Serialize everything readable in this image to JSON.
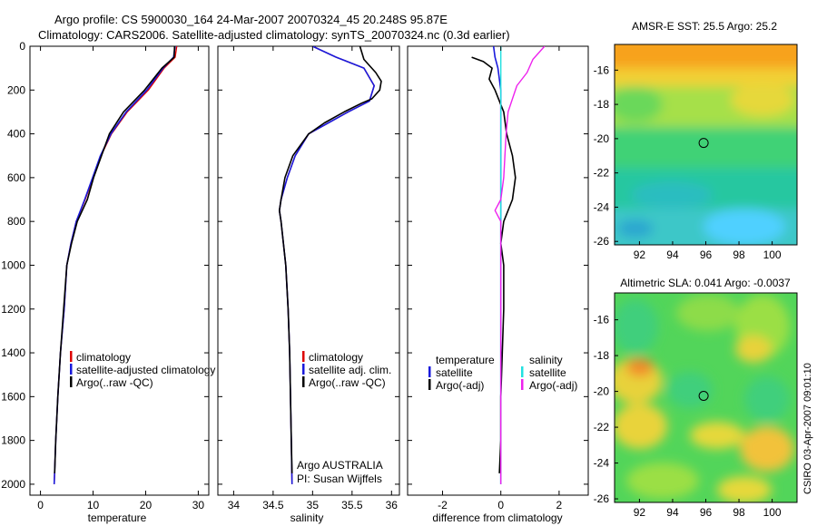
{
  "header": {
    "line1": "Argo profile: CS 5900030_164 24-Mar-2007 20070324_45 20.248S 95.87E",
    "line2": "Climatology: CARS2006. Satellite-adjusted climatology: synTS_20070324.nc (0.3d earlier)"
  },
  "side_stamp": "CSIRO 03-Apr-2007 09:01:10",
  "colors": {
    "red": "#dd0000",
    "blue": "#1a1adc",
    "black": "#000000",
    "cyan": "#22e0e0",
    "magenta": "#ee22ee"
  },
  "chart_data": [
    {
      "id": "temperature",
      "type": "line",
      "xlabel": "temperature",
      "xlim": [
        -2,
        32
      ],
      "ylim": [
        2050,
        0
      ],
      "xticks": [
        0,
        10,
        20,
        30
      ],
      "yticks": [
        0,
        200,
        400,
        600,
        800,
        1000,
        1200,
        1400,
        1600,
        1800,
        2000
      ],
      "legend": {
        "placement": "lower-center",
        "entries": [
          "climatology",
          "satellite-adjusted climatology",
          "Argo(..raw -QC)"
        ]
      },
      "series": [
        {
          "name": "climatology",
          "color": "red",
          "points": [
            [
              25.9,
              0
            ],
            [
              25.6,
              50
            ],
            [
              23.5,
              100
            ],
            [
              20.5,
              200
            ],
            [
              16.5,
              300
            ],
            [
              13.5,
              400
            ],
            [
              11.5,
              500
            ],
            [
              10.0,
              600
            ],
            [
              8.5,
              700
            ],
            [
              6.8,
              800
            ],
            [
              5.8,
              900
            ],
            [
              5.0,
              1000
            ],
            [
              4.5,
              1200
            ],
            [
              3.8,
              1400
            ],
            [
              3.3,
              1600
            ],
            [
              2.9,
              1800
            ],
            [
              2.6,
              2000
            ]
          ]
        },
        {
          "name": "satellite-adjusted climatology",
          "color": "blue",
          "points": [
            [
              25.6,
              0
            ],
            [
              25.3,
              50
            ],
            [
              23.3,
              100
            ],
            [
              20.2,
              200
            ],
            [
              16.3,
              300
            ],
            [
              13.4,
              400
            ],
            [
              11.4,
              500
            ],
            [
              9.9,
              600
            ],
            [
              8.4,
              700
            ],
            [
              6.8,
              800
            ],
            [
              5.8,
              900
            ],
            [
              5.0,
              1000
            ],
            [
              4.5,
              1200
            ],
            [
              3.8,
              1400
            ],
            [
              3.3,
              1600
            ],
            [
              2.9,
              1800
            ],
            [
              2.6,
              2000
            ]
          ]
        },
        {
          "name": "Argo(..raw -QC)",
          "color": "black",
          "points": [
            [
              25.5,
              0
            ],
            [
              25.4,
              50
            ],
            [
              23.1,
              100
            ],
            [
              19.8,
              200
            ],
            [
              15.8,
              300
            ],
            [
              13.1,
              400
            ],
            [
              11.6,
              500
            ],
            [
              10.1,
              600
            ],
            [
              8.9,
              700
            ],
            [
              7.0,
              800
            ],
            [
              5.9,
              900
            ],
            [
              5.0,
              1000
            ],
            [
              4.4,
              1200
            ],
            [
              3.8,
              1400
            ],
            [
              3.3,
              1600
            ],
            [
              2.9,
              1800
            ],
            [
              2.7,
              1950
            ]
          ]
        }
      ]
    },
    {
      "id": "salinity",
      "type": "line",
      "xlabel": "salinity",
      "xlim": [
        33.8,
        36.1
      ],
      "ylim": [
        2050,
        0
      ],
      "xticks": [
        34,
        34.5,
        35,
        35.5,
        36
      ],
      "legend": {
        "placement": "lower-center",
        "entries": [
          "climatology",
          "satellite adj. clim.",
          "Argo(..raw -QC)"
        ]
      },
      "annotation": [
        "Argo AUSTRALIA",
        "PI: Susan Wijffels"
      ],
      "series": [
        {
          "name": "climatology",
          "color": "red",
          "points": [
            [
              35.0,
              0
            ],
            [
              35.3,
              50
            ],
            [
              35.65,
              100
            ],
            [
              35.78,
              180
            ],
            [
              35.72,
              250
            ],
            [
              35.45,
              300
            ],
            [
              35.2,
              350
            ],
            [
              34.95,
              400
            ],
            [
              34.78,
              500
            ],
            [
              34.68,
              600
            ],
            [
              34.6,
              700
            ],
            [
              34.58,
              750
            ],
            [
              34.6,
              800
            ],
            [
              34.63,
              900
            ],
            [
              34.66,
              1000
            ],
            [
              34.69,
              1200
            ],
            [
              34.71,
              1400
            ],
            [
              34.72,
              1600
            ],
            [
              34.73,
              1800
            ],
            [
              34.74,
              2000
            ]
          ]
        },
        {
          "name": "satellite adj. clim.",
          "color": "blue",
          "points": [
            [
              35.0,
              0
            ],
            [
              35.3,
              50
            ],
            [
              35.65,
              100
            ],
            [
              35.78,
              180
            ],
            [
              35.72,
              250
            ],
            [
              35.45,
              300
            ],
            [
              35.2,
              350
            ],
            [
              34.95,
              400
            ],
            [
              34.78,
              500
            ],
            [
              34.68,
              600
            ],
            [
              34.6,
              700
            ],
            [
              34.58,
              750
            ],
            [
              34.6,
              800
            ],
            [
              34.63,
              900
            ],
            [
              34.66,
              1000
            ],
            [
              34.69,
              1200
            ],
            [
              34.71,
              1400
            ],
            [
              34.72,
              1600
            ],
            [
              34.73,
              1800
            ],
            [
              34.74,
              2000
            ]
          ]
        },
        {
          "name": "Argo(..raw -QC)",
          "color": "black",
          "points": [
            [
              35.6,
              0
            ],
            [
              35.65,
              60
            ],
            [
              35.8,
              120
            ],
            [
              35.87,
              160
            ],
            [
              35.85,
              200
            ],
            [
              35.75,
              240
            ],
            [
              35.62,
              260
            ],
            [
              35.4,
              300
            ],
            [
              35.15,
              350
            ],
            [
              34.95,
              400
            ],
            [
              34.75,
              500
            ],
            [
              34.65,
              600
            ],
            [
              34.6,
              700
            ],
            [
              34.58,
              750
            ],
            [
              34.6,
              800
            ],
            [
              34.63,
              900
            ],
            [
              34.66,
              1000
            ],
            [
              34.69,
              1200
            ],
            [
              34.71,
              1400
            ],
            [
              34.72,
              1600
            ],
            [
              34.73,
              1800
            ],
            [
              34.74,
              1950
            ]
          ]
        }
      ]
    },
    {
      "id": "difference",
      "type": "line",
      "xlabel": "difference from climatology",
      "xlim": [
        -3.2,
        3.0
      ],
      "ylim": [
        2050,
        0
      ],
      "xticks": [
        -2,
        0,
        2
      ],
      "legend": {
        "placement": "lower-center",
        "groups": [
          {
            "title": "temperature",
            "entries": [
              "satellite",
              "Argo(-adj)"
            ]
          },
          {
            "title": "salinity",
            "entries": [
              "satellite",
              "Argo(-adj)"
            ]
          }
        ]
      },
      "series": [
        {
          "name": "temperature satellite",
          "color": "blue",
          "points": [
            [
              -0.25,
              0
            ],
            [
              -0.2,
              50
            ],
            [
              -0.1,
              100
            ],
            [
              0,
              200
            ],
            [
              0,
              2000
            ]
          ]
        },
        {
          "name": "temperature Argo(-adj)",
          "color": "black",
          "points": [
            [
              -1.0,
              50
            ],
            [
              -0.6,
              70
            ],
            [
              -0.3,
              100
            ],
            [
              -0.4,
              150
            ],
            [
              -0.2,
              200
            ],
            [
              0.1,
              300
            ],
            [
              0.2,
              400
            ],
            [
              0.4,
              500
            ],
            [
              0.5,
              600
            ],
            [
              0.4,
              700
            ],
            [
              0.1,
              800
            ],
            [
              0,
              900
            ],
            [
              0.1,
              1000
            ],
            [
              0.1,
              1200
            ],
            [
              0.05,
              1400
            ],
            [
              0,
              1600
            ],
            [
              0,
              1800
            ],
            [
              -0.05,
              1950
            ]
          ]
        },
        {
          "name": "salinity satellite",
          "color": "cyan",
          "points": [
            [
              0,
              0
            ],
            [
              0,
              2000
            ]
          ]
        },
        {
          "name": "salinity Argo(-adj)",
          "color": "magenta",
          "points": [
            [
              1.5,
              0
            ],
            [
              1.1,
              60
            ],
            [
              0.9,
              120
            ],
            [
              0.55,
              180
            ],
            [
              0.4,
              240
            ],
            [
              0.25,
              300
            ],
            [
              0.18,
              400
            ],
            [
              0.1,
              600
            ],
            [
              0,
              700
            ],
            [
              -0.2,
              750
            ],
            [
              0,
              800
            ],
            [
              0,
              2000
            ]
          ]
        }
      ]
    }
  ],
  "maps": [
    {
      "id": "sst",
      "title": "AMSR-E SST: 25.5 Argo: 25.2",
      "xlim": [
        90.5,
        101.5
      ],
      "ylim": [
        -26.2,
        -14.5
      ],
      "xticks": [
        92,
        94,
        96,
        98,
        100
      ],
      "yticks": [
        -16,
        -18,
        -20,
        -22,
        -24,
        -26
      ],
      "marker": [
        95.87,
        -20.248
      ]
    },
    {
      "id": "sla",
      "title": "Altimetric SLA: 0.041 Argo: -0.0037",
      "xlim": [
        90.5,
        101.5
      ],
      "ylim": [
        -26.2,
        -14.5
      ],
      "xticks": [
        92,
        94,
        96,
        98,
        100
      ],
      "yticks": [
        -16,
        -18,
        -20,
        -22,
        -24,
        -26
      ],
      "marker": [
        95.87,
        -20.248
      ]
    }
  ]
}
